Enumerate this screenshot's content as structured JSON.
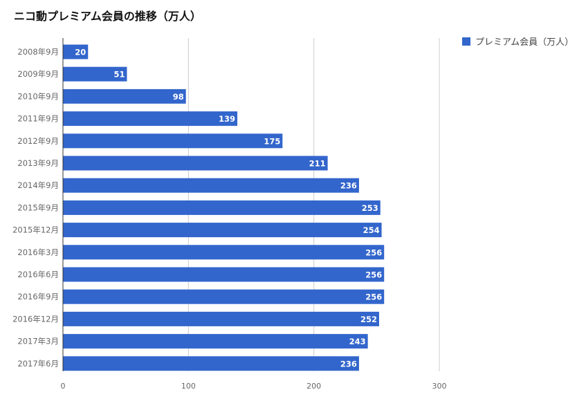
{
  "chart_data": {
    "type": "bar",
    "orientation": "horizontal",
    "title": "ニコ動プレミアム会員の推移（万人）",
    "categories": [
      "2008年9月",
      "2009年9月",
      "2010年9月",
      "2011年9月",
      "2012年9月",
      "2013年9月",
      "2014年9月",
      "2015年9月",
      "2015年12月",
      "2016年3月",
      "2016年6月",
      "2016年9月",
      "2016年12月",
      "2017年3月",
      "2017年6月"
    ],
    "series": [
      {
        "name": "プレミアム会員（万人）",
        "values": [
          20,
          51,
          98,
          139,
          175,
          211,
          236,
          253,
          254,
          256,
          256,
          256,
          252,
          243,
          236
        ]
      }
    ],
    "xlim": [
      0,
      300
    ],
    "xticks": [
      "0",
      "100",
      "200",
      "300"
    ],
    "grid": true,
    "data_labels": true,
    "legend_position": "top-right",
    "colors": {
      "bar": "#3366cc",
      "grid": "#cccccc",
      "axis": "#333333",
      "data_label": "#ffffff",
      "tick_label": "#666666"
    }
  }
}
